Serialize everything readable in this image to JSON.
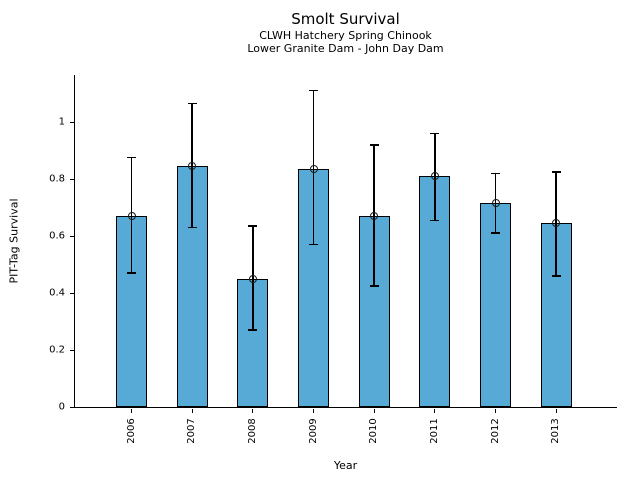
{
  "chart_data": {
    "type": "bar",
    "title": "Smolt Survival",
    "subtitle_line1": "CLWH Hatchery Spring Chinook",
    "subtitle_line2": "Lower Granite Dam - John Day Dam",
    "xlabel": "Year",
    "ylabel": "PIT-Tag Survival",
    "categories": [
      "2006",
      "2007",
      "2008",
      "2009",
      "2010",
      "2011",
      "2012",
      "2013"
    ],
    "values": [
      0.67,
      0.845,
      0.45,
      0.835,
      0.67,
      0.81,
      0.715,
      0.645
    ],
    "error_low": [
      0.47,
      0.63,
      0.27,
      0.57,
      0.425,
      0.655,
      0.61,
      0.46
    ],
    "error_high": [
      0.875,
      1.065,
      0.635,
      1.11,
      0.92,
      0.96,
      0.82,
      0.825
    ],
    "yticks": [
      0,
      0.2,
      0.4,
      0.6,
      0.8,
      1
    ],
    "ytick_labels": [
      "0",
      "0.2",
      "0.4",
      "0.6",
      "0.8",
      "1"
    ],
    "ylim": [
      0,
      1.165
    ],
    "grid": false,
    "legend": null,
    "marker": "open-circle",
    "bar_color": "#57AAD5",
    "bar_edge_color": "#000000",
    "errorbar_color": "#000000",
    "axis_color": "#000000"
  }
}
